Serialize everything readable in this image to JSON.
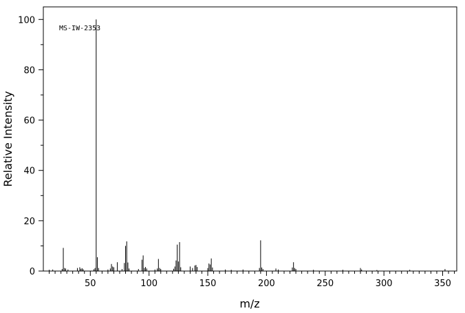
{
  "chart_data": {
    "type": "bar",
    "title": "",
    "annotation": "MS-IW-2353",
    "xlabel": "m/z",
    "ylabel": "Relative Intensity",
    "xlim": [
      10,
      362
    ],
    "ylim": [
      0,
      105
    ],
    "x_ticks": [
      50,
      100,
      150,
      200,
      250,
      300,
      350
    ],
    "y_ticks": [
      0,
      20,
      40,
      60,
      80,
      100
    ],
    "grid": false,
    "peaks": [
      {
        "x": 15,
        "y": 0.5
      },
      {
        "x": 18,
        "y": 0.6
      },
      {
        "x": 26,
        "y": 0.8
      },
      {
        "x": 27,
        "y": 9.2
      },
      {
        "x": 28,
        "y": 1.2
      },
      {
        "x": 29,
        "y": 1.0
      },
      {
        "x": 31,
        "y": 0.6
      },
      {
        "x": 39,
        "y": 1.2
      },
      {
        "x": 41,
        "y": 1.5
      },
      {
        "x": 42,
        "y": 0.9
      },
      {
        "x": 43,
        "y": 1.1
      },
      {
        "x": 44,
        "y": 0.7
      },
      {
        "x": 53,
        "y": 0.7
      },
      {
        "x": 54,
        "y": 1.2
      },
      {
        "x": 55,
        "y": 100
      },
      {
        "x": 56,
        "y": 5.5
      },
      {
        "x": 57,
        "y": 1.2
      },
      {
        "x": 65,
        "y": 0.6
      },
      {
        "x": 67,
        "y": 1.0
      },
      {
        "x": 68,
        "y": 2.8
      },
      {
        "x": 69,
        "y": 1.8
      },
      {
        "x": 70,
        "y": 1.5
      },
      {
        "x": 73,
        "y": 3.5
      },
      {
        "x": 77,
        "y": 0.8
      },
      {
        "x": 79,
        "y": 3.2
      },
      {
        "x": 80,
        "y": 10.0
      },
      {
        "x": 81,
        "y": 11.8
      },
      {
        "x": 82,
        "y": 3.4
      },
      {
        "x": 83,
        "y": 1.0
      },
      {
        "x": 91,
        "y": 0.8
      },
      {
        "x": 94,
        "y": 4.5
      },
      {
        "x": 95,
        "y": 6.2
      },
      {
        "x": 96,
        "y": 1.2
      },
      {
        "x": 97,
        "y": 1.6
      },
      {
        "x": 98,
        "y": 1.0
      },
      {
        "x": 105,
        "y": 0.6
      },
      {
        "x": 107,
        "y": 1.0
      },
      {
        "x": 108,
        "y": 4.8
      },
      {
        "x": 109,
        "y": 1.2
      },
      {
        "x": 110,
        "y": 0.8
      },
      {
        "x": 121,
        "y": 0.9
      },
      {
        "x": 122,
        "y": 1.8
      },
      {
        "x": 123,
        "y": 4.2
      },
      {
        "x": 124,
        "y": 10.5
      },
      {
        "x": 125,
        "y": 3.8
      },
      {
        "x": 126,
        "y": 11.5
      },
      {
        "x": 127,
        "y": 1.5
      },
      {
        "x": 135,
        "y": 1.8
      },
      {
        "x": 137,
        "y": 1.2
      },
      {
        "x": 139,
        "y": 2.2
      },
      {
        "x": 140,
        "y": 2.4
      },
      {
        "x": 141,
        "y": 1.6
      },
      {
        "x": 150,
        "y": 1.2
      },
      {
        "x": 151,
        "y": 3.0
      },
      {
        "x": 152,
        "y": 2.6
      },
      {
        "x": 153,
        "y": 5.0
      },
      {
        "x": 154,
        "y": 1.4
      },
      {
        "x": 165,
        "y": 0.6
      },
      {
        "x": 170,
        "y": 0.5
      },
      {
        "x": 180,
        "y": 0.6
      },
      {
        "x": 194,
        "y": 1.2
      },
      {
        "x": 195,
        "y": 12.2
      },
      {
        "x": 196,
        "y": 1.4
      },
      {
        "x": 197,
        "y": 0.8
      },
      {
        "x": 208,
        "y": 1.0
      },
      {
        "x": 210,
        "y": 0.6
      },
      {
        "x": 222,
        "y": 1.4
      },
      {
        "x": 223,
        "y": 3.5
      },
      {
        "x": 224,
        "y": 1.2
      },
      {
        "x": 225,
        "y": 0.8
      },
      {
        "x": 240,
        "y": 0.5
      },
      {
        "x": 265,
        "y": 0.5
      },
      {
        "x": 280,
        "y": 1.2
      },
      {
        "x": 281,
        "y": 0.6
      },
      {
        "x": 294,
        "y": 0.4
      },
      {
        "x": 322,
        "y": 0.5
      },
      {
        "x": 352,
        "y": 0.8
      }
    ]
  }
}
